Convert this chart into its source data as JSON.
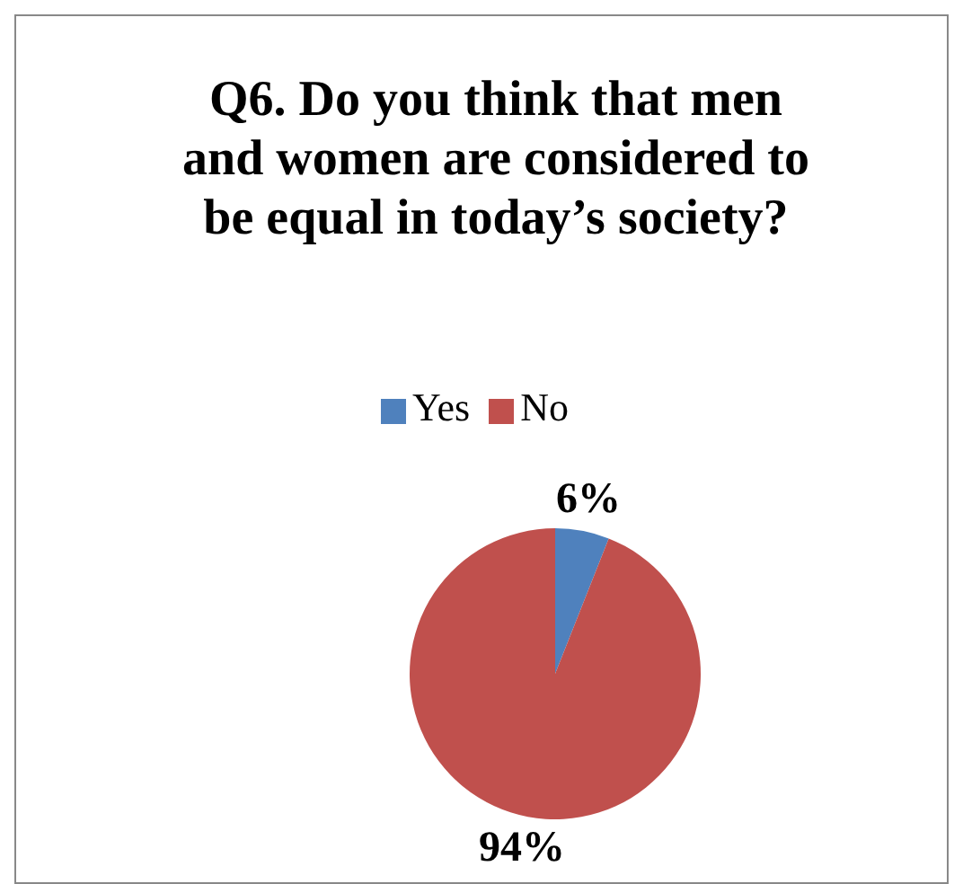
{
  "chart_data": {
    "type": "pie",
    "title": "Q6. Do you think that men and women are considered to be equal in today’s society?",
    "categories": [
      "Yes",
      "No"
    ],
    "values": [
      6,
      94
    ],
    "colors": [
      "#4f81bd",
      "#c0504d"
    ],
    "value_labels": [
      "6%",
      "94%"
    ],
    "legend": "top"
  }
}
